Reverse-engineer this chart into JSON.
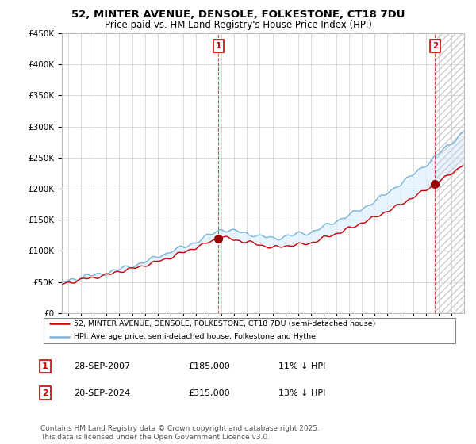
{
  "title": "52, MINTER AVENUE, DENSOLE, FOLKESTONE, CT18 7DU",
  "subtitle": "Price paid vs. HM Land Registry's House Price Index (HPI)",
  "ylim": [
    0,
    450000
  ],
  "yticks": [
    0,
    50000,
    100000,
    150000,
    200000,
    250000,
    300000,
    350000,
    400000,
    450000
  ],
  "xlim": [
    1995.5,
    2027.0
  ],
  "transaction1_x": 2007.75,
  "transaction1_y": 185000,
  "transaction1_label": "1",
  "transaction1_date": "28-SEP-2007",
  "transaction1_price": "£185,000",
  "transaction1_hpi": "11% ↓ HPI",
  "transaction2_x": 2024.72,
  "transaction2_y": 315000,
  "transaction2_label": "2",
  "transaction2_date": "20-SEP-2024",
  "transaction2_price": "£315,000",
  "transaction2_hpi": "13% ↓ HPI",
  "line_color_property": "#cc0000",
  "line_color_hpi": "#7ab5d8",
  "fill_color": "#ddeeff",
  "background_color": "#ffffff",
  "grid_color": "#cccccc",
  "legend_line1": "52, MINTER AVENUE, DENSOLE, FOLKESTONE, CT18 7DU (semi-detached house)",
  "legend_line2": "HPI: Average price, semi-detached house, Folkestone and Hythe",
  "footer": "Contains HM Land Registry data © Crown copyright and database right 2025.\nThis data is licensed under the Open Government Licence v3.0."
}
